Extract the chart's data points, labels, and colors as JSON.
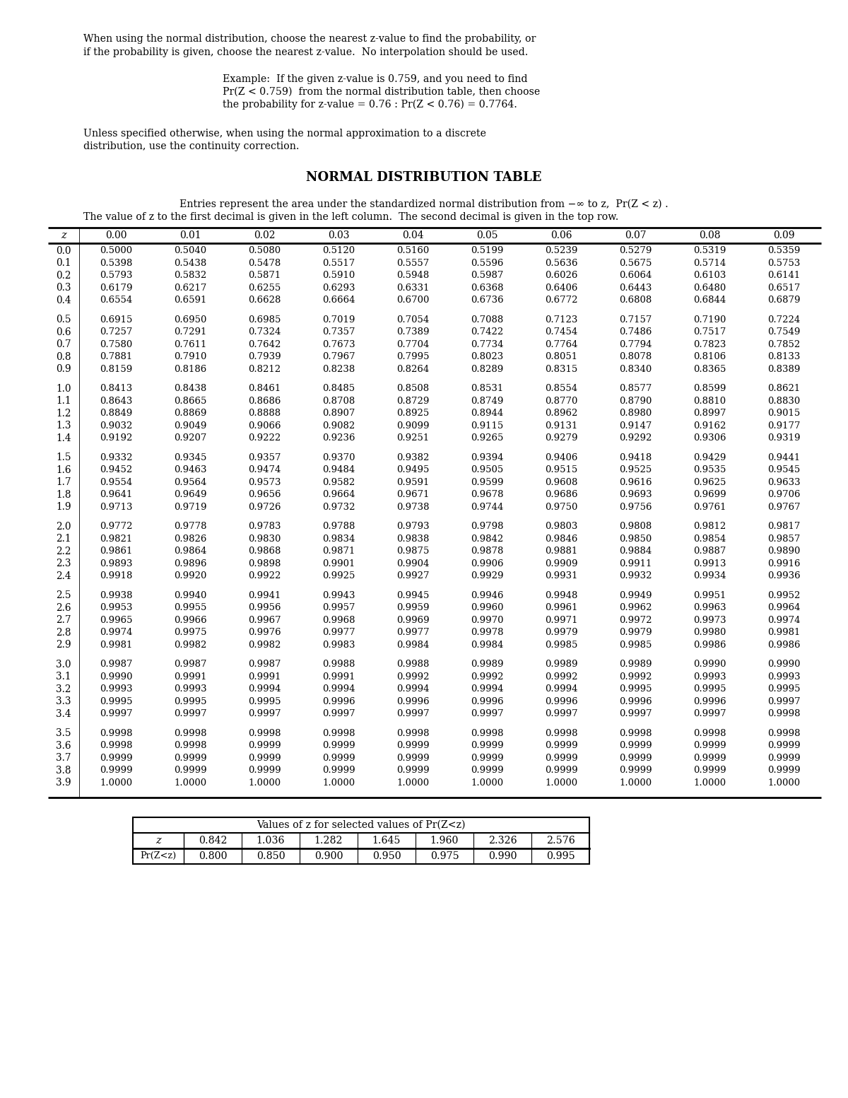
{
  "intro_text1": "When using the normal distribution, choose the nearest z-value to find the probability, or",
  "intro_text2": "if the probability is given, choose the nearest z-value.  No interpolation should be used.",
  "example_line1": "Example:  If the given z-value is 0.759, and you need to find",
  "example_line2": "Pr(Z < 0.759)  from the normal distribution table, then choose",
  "example_line3": "the probability for z-value = 0.76 : Pr(Z < 0.76) = 0.7764.",
  "unless_text1": "Unless specified otherwise, when using the normal approximation to a discrete",
  "unless_text2": "distribution, use the continuity correction.",
  "table_title": "NORMAL DISTRIBUTION TABLE",
  "entry_text1": "Entries represent the area under the standardized normal distribution from −∞ to z,  Pr(Z < z) .",
  "entry_text2": "The value of z to the first decimal is given in the left column.  The second decimal is given in the top row.",
  "col_headers": [
    "0.00",
    "0.01",
    "0.02",
    "0.03",
    "0.04",
    "0.05",
    "0.06",
    "0.07",
    "0.08",
    "0.09"
  ],
  "z_values": [
    "0.0",
    "0.1",
    "0.2",
    "0.3",
    "0.4",
    "0.5",
    "0.6",
    "0.7",
    "0.8",
    "0.9",
    "1.0",
    "1.1",
    "1.2",
    "1.3",
    "1.4",
    "1.5",
    "1.6",
    "1.7",
    "1.8",
    "1.9",
    "2.0",
    "2.1",
    "2.2",
    "2.3",
    "2.4",
    "2.5",
    "2.6",
    "2.7",
    "2.8",
    "2.9",
    "3.0",
    "3.1",
    "3.2",
    "3.3",
    "3.4",
    "3.5",
    "3.6",
    "3.7",
    "3.8",
    "3.9"
  ],
  "table_data": [
    [
      0.5,
      0.504,
      0.508,
      0.512,
      0.516,
      0.5199,
      0.5239,
      0.5279,
      0.5319,
      0.5359
    ],
    [
      0.5398,
      0.5438,
      0.5478,
      0.5517,
      0.5557,
      0.5596,
      0.5636,
      0.5675,
      0.5714,
      0.5753
    ],
    [
      0.5793,
      0.5832,
      0.5871,
      0.591,
      0.5948,
      0.5987,
      0.6026,
      0.6064,
      0.6103,
      0.6141
    ],
    [
      0.6179,
      0.6217,
      0.6255,
      0.6293,
      0.6331,
      0.6368,
      0.6406,
      0.6443,
      0.648,
      0.6517
    ],
    [
      0.6554,
      0.6591,
      0.6628,
      0.6664,
      0.67,
      0.6736,
      0.6772,
      0.6808,
      0.6844,
      0.6879
    ],
    [
      0.6915,
      0.695,
      0.6985,
      0.7019,
      0.7054,
      0.7088,
      0.7123,
      0.7157,
      0.719,
      0.7224
    ],
    [
      0.7257,
      0.7291,
      0.7324,
      0.7357,
      0.7389,
      0.7422,
      0.7454,
      0.7486,
      0.7517,
      0.7549
    ],
    [
      0.758,
      0.7611,
      0.7642,
      0.7673,
      0.7704,
      0.7734,
      0.7764,
      0.7794,
      0.7823,
      0.7852
    ],
    [
      0.7881,
      0.791,
      0.7939,
      0.7967,
      0.7995,
      0.8023,
      0.8051,
      0.8078,
      0.8106,
      0.8133
    ],
    [
      0.8159,
      0.8186,
      0.8212,
      0.8238,
      0.8264,
      0.8289,
      0.8315,
      0.834,
      0.8365,
      0.8389
    ],
    [
      0.8413,
      0.8438,
      0.8461,
      0.8485,
      0.8508,
      0.8531,
      0.8554,
      0.8577,
      0.8599,
      0.8621
    ],
    [
      0.8643,
      0.8665,
      0.8686,
      0.8708,
      0.8729,
      0.8749,
      0.877,
      0.879,
      0.881,
      0.883
    ],
    [
      0.8849,
      0.8869,
      0.8888,
      0.8907,
      0.8925,
      0.8944,
      0.8962,
      0.898,
      0.8997,
      0.9015
    ],
    [
      0.9032,
      0.9049,
      0.9066,
      0.9082,
      0.9099,
      0.9115,
      0.9131,
      0.9147,
      0.9162,
      0.9177
    ],
    [
      0.9192,
      0.9207,
      0.9222,
      0.9236,
      0.9251,
      0.9265,
      0.9279,
      0.9292,
      0.9306,
      0.9319
    ],
    [
      0.9332,
      0.9345,
      0.9357,
      0.937,
      0.9382,
      0.9394,
      0.9406,
      0.9418,
      0.9429,
      0.9441
    ],
    [
      0.9452,
      0.9463,
      0.9474,
      0.9484,
      0.9495,
      0.9505,
      0.9515,
      0.9525,
      0.9535,
      0.9545
    ],
    [
      0.9554,
      0.9564,
      0.9573,
      0.9582,
      0.9591,
      0.9599,
      0.9608,
      0.9616,
      0.9625,
      0.9633
    ],
    [
      0.9641,
      0.9649,
      0.9656,
      0.9664,
      0.9671,
      0.9678,
      0.9686,
      0.9693,
      0.9699,
      0.9706
    ],
    [
      0.9713,
      0.9719,
      0.9726,
      0.9732,
      0.9738,
      0.9744,
      0.975,
      0.9756,
      0.9761,
      0.9767
    ],
    [
      0.9772,
      0.9778,
      0.9783,
      0.9788,
      0.9793,
      0.9798,
      0.9803,
      0.9808,
      0.9812,
      0.9817
    ],
    [
      0.9821,
      0.9826,
      0.983,
      0.9834,
      0.9838,
      0.9842,
      0.9846,
      0.985,
      0.9854,
      0.9857
    ],
    [
      0.9861,
      0.9864,
      0.9868,
      0.9871,
      0.9875,
      0.9878,
      0.9881,
      0.9884,
      0.9887,
      0.989
    ],
    [
      0.9893,
      0.9896,
      0.9898,
      0.9901,
      0.9904,
      0.9906,
      0.9909,
      0.9911,
      0.9913,
      0.9916
    ],
    [
      0.9918,
      0.992,
      0.9922,
      0.9925,
      0.9927,
      0.9929,
      0.9931,
      0.9932,
      0.9934,
      0.9936
    ],
    [
      0.9938,
      0.994,
      0.9941,
      0.9943,
      0.9945,
      0.9946,
      0.9948,
      0.9949,
      0.9951,
      0.9952
    ],
    [
      0.9953,
      0.9955,
      0.9956,
      0.9957,
      0.9959,
      0.996,
      0.9961,
      0.9962,
      0.9963,
      0.9964
    ],
    [
      0.9965,
      0.9966,
      0.9967,
      0.9968,
      0.9969,
      0.997,
      0.9971,
      0.9972,
      0.9973,
      0.9974
    ],
    [
      0.9974,
      0.9975,
      0.9976,
      0.9977,
      0.9977,
      0.9978,
      0.9979,
      0.9979,
      0.998,
      0.9981
    ],
    [
      0.9981,
      0.9982,
      0.9982,
      0.9983,
      0.9984,
      0.9984,
      0.9985,
      0.9985,
      0.9986,
      0.9986
    ],
    [
      0.9987,
      0.9987,
      0.9987,
      0.9988,
      0.9988,
      0.9989,
      0.9989,
      0.9989,
      0.999,
      0.999
    ],
    [
      0.999,
      0.9991,
      0.9991,
      0.9991,
      0.9992,
      0.9992,
      0.9992,
      0.9992,
      0.9993,
      0.9993
    ],
    [
      0.9993,
      0.9993,
      0.9994,
      0.9994,
      0.9994,
      0.9994,
      0.9994,
      0.9995,
      0.9995,
      0.9995
    ],
    [
      0.9995,
      0.9995,
      0.9995,
      0.9996,
      0.9996,
      0.9996,
      0.9996,
      0.9996,
      0.9996,
      0.9997
    ],
    [
      0.9997,
      0.9997,
      0.9997,
      0.9997,
      0.9997,
      0.9997,
      0.9997,
      0.9997,
      0.9997,
      0.9998
    ],
    [
      0.9998,
      0.9998,
      0.9998,
      0.9998,
      0.9998,
      0.9998,
      0.9998,
      0.9998,
      0.9998,
      0.9998
    ],
    [
      0.9998,
      0.9998,
      0.9999,
      0.9999,
      0.9999,
      0.9999,
      0.9999,
      0.9999,
      0.9999,
      0.9999
    ],
    [
      0.9999,
      0.9999,
      0.9999,
      0.9999,
      0.9999,
      0.9999,
      0.9999,
      0.9999,
      0.9999,
      0.9999
    ],
    [
      0.9999,
      0.9999,
      0.9999,
      0.9999,
      0.9999,
      0.9999,
      0.9999,
      0.9999,
      0.9999,
      0.9999
    ],
    [
      1.0,
      1.0,
      1.0,
      1.0,
      1.0,
      1.0,
      1.0,
      1.0,
      1.0,
      1.0
    ]
  ],
  "bottom_table_title": "Values of z for selected values of Pr(Z<z)",
  "bottom_z_values": [
    "0.842",
    "1.036",
    "1.282",
    "1.645",
    "1.960",
    "2.326",
    "2.576"
  ],
  "bottom_prob_values": [
    "0.800",
    "0.850",
    "0.900",
    "0.950",
    "0.975",
    "0.990",
    "0.995"
  ],
  "bg_color": "#ffffff",
  "text_color": "#000000"
}
